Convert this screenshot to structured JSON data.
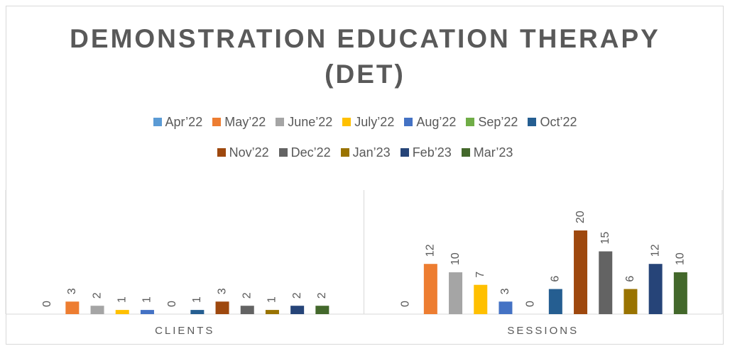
{
  "chart_data": {
    "type": "bar",
    "title": "DEMONSTRATION EDUCATION THERAPY (DET)",
    "categories": [
      "CLIENTS",
      "SESSIONS"
    ],
    "series": [
      {
        "name": "Apr’22",
        "color": "#5b9bd5",
        "values": [
          0,
          0
        ]
      },
      {
        "name": "May’22",
        "color": "#ed7d31",
        "values": [
          3,
          12
        ]
      },
      {
        "name": "June’22",
        "color": "#a5a5a5",
        "values": [
          2,
          10
        ]
      },
      {
        "name": "July’22",
        "color": "#ffc000",
        "values": [
          1,
          7
        ]
      },
      {
        "name": "Aug’22",
        "color": "#4472c4",
        "values": [
          1,
          3
        ]
      },
      {
        "name": "Sep’22",
        "color": "#70ad47",
        "values": [
          0,
          0
        ]
      },
      {
        "name": "Oct’22",
        "color": "#255e91",
        "values": [
          1,
          6
        ]
      },
      {
        "name": "Nov’22",
        "color": "#9e480e",
        "values": [
          3,
          20
        ]
      },
      {
        "name": "Dec’22",
        "color": "#636363",
        "values": [
          2,
          15
        ]
      },
      {
        "name": "Jan’23",
        "color": "#997300",
        "values": [
          1,
          6
        ]
      },
      {
        "name": "Feb’23",
        "color": "#264478",
        "values": [
          2,
          12
        ]
      },
      {
        "name": "Mar’23",
        "color": "#43682b",
        "values": [
          2,
          10
        ]
      }
    ],
    "legend": "top",
    "data_labels": true
  }
}
